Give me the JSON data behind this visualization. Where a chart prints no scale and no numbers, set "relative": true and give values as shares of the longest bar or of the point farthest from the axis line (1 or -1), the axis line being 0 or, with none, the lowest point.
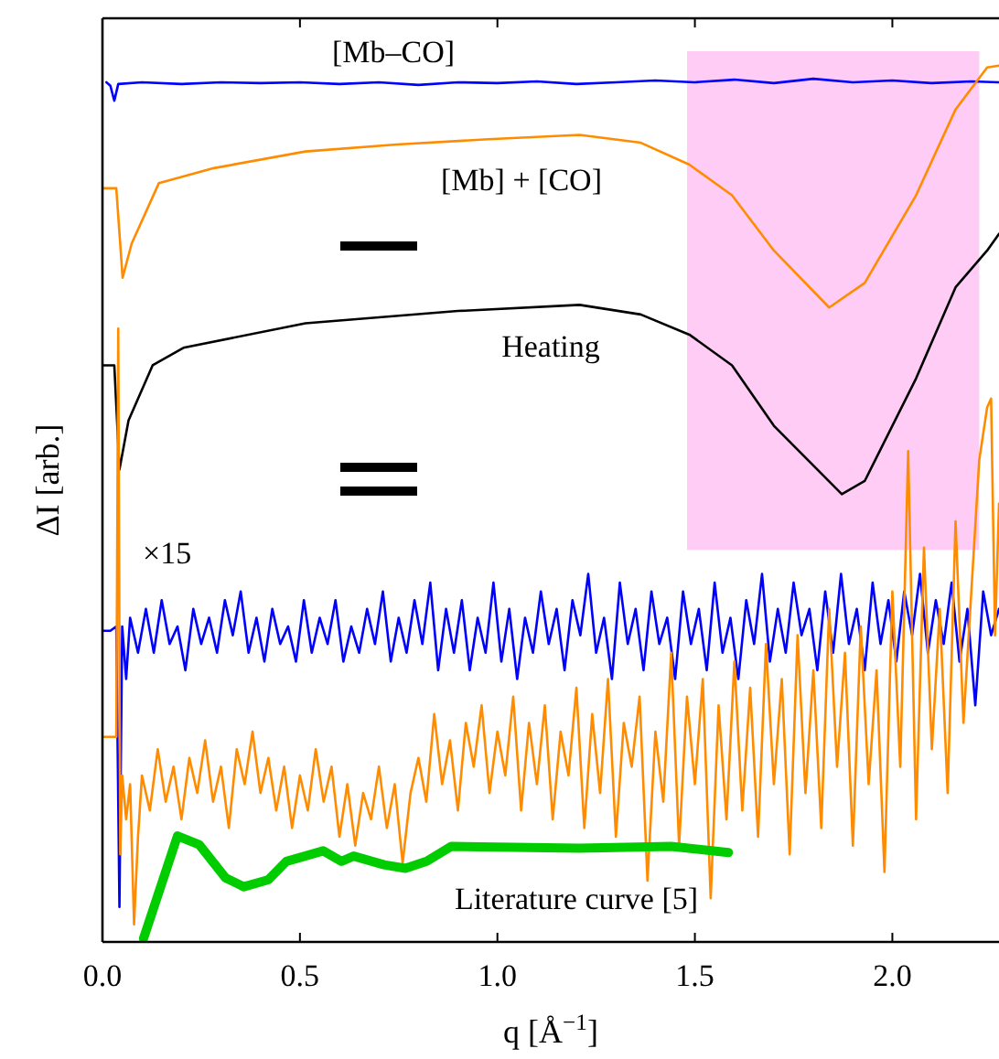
{
  "chart_data": {
    "type": "line",
    "relative": true,
    "xlabel": "q [Å$^{−1}$]",
    "ylabel": "ΔI [arb.]",
    "xlim": [
      0,
      2.27
    ],
    "xticks": [
      {
        "value": 0,
        "label": "0.0"
      },
      {
        "value": 0.5,
        "label": "0.5"
      },
      {
        "value": 1,
        "label": "1.0"
      },
      {
        "value": 1.5,
        "label": "1.5"
      },
      {
        "value": 2,
        "label": "2.0"
      }
    ],
    "bands": [
      {
        "axis": "x",
        "from": 1.48,
        "to": 2.22,
        "color": "#ffccf6"
      }
    ],
    "annotations": [
      "×15"
    ],
    "series": [
      {
        "name": "[Mb–CO]",
        "color": "#0000ff",
        "x": [
          0.01,
          0.02,
          0.03,
          0.04,
          0.1,
          0.2,
          0.3,
          0.4,
          0.5,
          0.6,
          0.7,
          0.8,
          0.9,
          1.0,
          1.1,
          1.2,
          1.3,
          1.4,
          1.5,
          1.6,
          1.7,
          1.8,
          1.9,
          2.0,
          2.1,
          2.2,
          2.27
        ],
        "values": [
          0.981,
          0.977,
          0.96,
          0.979,
          0.981,
          0.979,
          0.981,
          0.98,
          0.981,
          0.979,
          0.981,
          0.978,
          0.981,
          0.98,
          0.982,
          0.979,
          0.981,
          0.983,
          0.981,
          0.984,
          0.98,
          0.985,
          0.981,
          0.983,
          0.98,
          0.982,
          0.981
        ]
      },
      {
        "name": "[Mb] + [CO]",
        "color": "#ff8c00",
        "x": [
          0.0,
          0.035,
          0.051,
          0.074,
          0.143,
          0.282,
          0.514,
          0.745,
          0.977,
          1.208,
          1.363,
          1.486,
          1.594,
          1.7,
          1.84,
          1.93,
          2.06,
          2.16,
          2.24,
          2.27
        ],
        "values": [
          0.86,
          0.86,
          0.758,
          0.797,
          0.866,
          0.883,
          0.902,
          0.91,
          0.916,
          0.921,
          0.912,
          0.887,
          0.852,
          0.789,
          0.724,
          0.752,
          0.852,
          0.95,
          0.998,
          1.0
        ]
      },
      {
        "name": "Heating",
        "color": "#000000",
        "x": [
          0.0,
          0.03,
          0.043,
          0.066,
          0.127,
          0.205,
          0.514,
          0.9,
          1.208,
          1.363,
          1.486,
          1.594,
          1.7,
          1.872,
          1.93,
          2.06,
          2.16,
          2.24,
          2.27
        ],
        "values": [
          0.658,
          0.658,
          0.539,
          0.595,
          0.658,
          0.678,
          0.706,
          0.72,
          0.727,
          0.716,
          0.693,
          0.658,
          0.589,
          0.511,
          0.526,
          0.643,
          0.747,
          0.789,
          0.808
        ]
      },
      {
        "color": "#0000ff",
        "x": [
          0.0,
          0.02,
          0.035,
          0.043,
          0.05,
          0.06,
          0.07,
          0.09,
          0.11,
          0.13,
          0.15,
          0.17,
          0.19,
          0.21,
          0.23,
          0.25,
          0.27,
          0.29,
          0.31,
          0.33,
          0.35,
          0.37,
          0.39,
          0.41,
          0.43,
          0.45,
          0.47,
          0.49,
          0.51,
          0.53,
          0.55,
          0.57,
          0.59,
          0.61,
          0.63,
          0.65,
          0.67,
          0.69,
          0.71,
          0.73,
          0.75,
          0.77,
          0.79,
          0.81,
          0.83,
          0.85,
          0.87,
          0.89,
          0.91,
          0.93,
          0.95,
          0.97,
          0.99,
          1.01,
          1.03,
          1.05,
          1.07,
          1.09,
          1.11,
          1.13,
          1.15,
          1.17,
          1.19,
          1.21,
          1.23,
          1.25,
          1.27,
          1.29,
          1.31,
          1.33,
          1.35,
          1.37,
          1.39,
          1.41,
          1.43,
          1.45,
          1.47,
          1.49,
          1.51,
          1.53,
          1.55,
          1.57,
          1.59,
          1.61,
          1.63,
          1.65,
          1.67,
          1.69,
          1.71,
          1.73,
          1.75,
          1.77,
          1.79,
          1.81,
          1.83,
          1.85,
          1.87,
          1.89,
          1.91,
          1.93,
          1.95,
          1.97,
          1.99,
          2.01,
          2.03,
          2.05,
          2.07,
          2.09,
          2.11,
          2.13,
          2.15,
          2.17,
          2.19,
          2.21,
          2.23,
          2.25,
          2.27
        ],
        "values": [
          0.355,
          0.355,
          0.36,
          0.04,
          0.36,
          0.3,
          0.37,
          0.33,
          0.38,
          0.33,
          0.39,
          0.34,
          0.36,
          0.31,
          0.38,
          0.34,
          0.37,
          0.33,
          0.39,
          0.35,
          0.4,
          0.33,
          0.37,
          0.32,
          0.38,
          0.34,
          0.36,
          0.32,
          0.39,
          0.33,
          0.37,
          0.34,
          0.39,
          0.32,
          0.36,
          0.33,
          0.38,
          0.34,
          0.4,
          0.32,
          0.37,
          0.33,
          0.39,
          0.34,
          0.41,
          0.31,
          0.38,
          0.33,
          0.39,
          0.31,
          0.37,
          0.33,
          0.41,
          0.32,
          0.38,
          0.3,
          0.37,
          0.33,
          0.4,
          0.34,
          0.38,
          0.31,
          0.39,
          0.35,
          0.42,
          0.33,
          0.37,
          0.3,
          0.41,
          0.34,
          0.38,
          0.31,
          0.4,
          0.34,
          0.37,
          0.3,
          0.4,
          0.34,
          0.38,
          0.31,
          0.41,
          0.33,
          0.37,
          0.3,
          0.39,
          0.34,
          0.42,
          0.32,
          0.38,
          0.33,
          0.41,
          0.35,
          0.38,
          0.31,
          0.4,
          0.33,
          0.42,
          0.34,
          0.38,
          0.31,
          0.41,
          0.34,
          0.39,
          0.32,
          0.4,
          0.35,
          0.42,
          0.33,
          0.39,
          0.34,
          0.41,
          0.32,
          0.38,
          0.27,
          0.4,
          0.35,
          0.38
        ]
      },
      {
        "color": "#ff8c00",
        "x": [
          0.0,
          0.035,
          0.04,
          0.045,
          0.05,
          0.06,
          0.07,
          0.08,
          0.09,
          0.1,
          0.12,
          0.14,
          0.16,
          0.18,
          0.2,
          0.22,
          0.24,
          0.26,
          0.28,
          0.3,
          0.32,
          0.34,
          0.36,
          0.38,
          0.4,
          0.42,
          0.44,
          0.46,
          0.48,
          0.5,
          0.52,
          0.54,
          0.56,
          0.58,
          0.6,
          0.62,
          0.64,
          0.66,
          0.68,
          0.7,
          0.72,
          0.74,
          0.76,
          0.78,
          0.8,
          0.82,
          0.84,
          0.86,
          0.88,
          0.9,
          0.92,
          0.94,
          0.96,
          0.98,
          1.0,
          1.02,
          1.04,
          1.06,
          1.08,
          1.1,
          1.12,
          1.14,
          1.16,
          1.18,
          1.2,
          1.22,
          1.24,
          1.26,
          1.28,
          1.3,
          1.32,
          1.34,
          1.36,
          1.38,
          1.4,
          1.42,
          1.44,
          1.46,
          1.48,
          1.5,
          1.52,
          1.54,
          1.56,
          1.58,
          1.6,
          1.62,
          1.64,
          1.66,
          1.68,
          1.7,
          1.72,
          1.74,
          1.76,
          1.78,
          1.8,
          1.82,
          1.84,
          1.86,
          1.88,
          1.9,
          1.92,
          1.94,
          1.96,
          1.98,
          2.0,
          2.02,
          2.04,
          2.06,
          2.08,
          2.1,
          2.12,
          2.14,
          2.16,
          2.18,
          2.2,
          2.22,
          2.24,
          2.25,
          2.26,
          2.27
        ],
        "values": [
          0.234,
          0.234,
          0.7,
          0.1,
          0.19,
          0.14,
          0.18,
          0.02,
          0.12,
          0.19,
          0.15,
          0.22,
          0.16,
          0.2,
          0.14,
          0.21,
          0.17,
          0.23,
          0.16,
          0.2,
          0.13,
          0.22,
          0.18,
          0.24,
          0.17,
          0.21,
          0.15,
          0.2,
          0.13,
          0.19,
          0.15,
          0.22,
          0.16,
          0.2,
          0.12,
          0.18,
          0.11,
          0.17,
          0.14,
          0.2,
          0.13,
          0.18,
          0.09,
          0.17,
          0.21,
          0.16,
          0.26,
          0.18,
          0.23,
          0.15,
          0.25,
          0.2,
          0.27,
          0.17,
          0.24,
          0.19,
          0.28,
          0.15,
          0.25,
          0.18,
          0.27,
          0.14,
          0.24,
          0.19,
          0.29,
          0.13,
          0.26,
          0.17,
          0.3,
          0.12,
          0.25,
          0.2,
          0.28,
          0.07,
          0.24,
          0.16,
          0.33,
          0.11,
          0.28,
          0.18,
          0.3,
          0.05,
          0.27,
          0.14,
          0.32,
          0.15,
          0.29,
          0.12,
          0.34,
          0.18,
          0.3,
          0.1,
          0.35,
          0.17,
          0.31,
          0.13,
          0.38,
          0.2,
          0.33,
          0.11,
          0.36,
          0.18,
          0.31,
          0.08,
          0.4,
          0.2,
          0.56,
          0.14,
          0.45,
          0.22,
          0.38,
          0.17,
          0.48,
          0.25,
          0.4,
          0.55,
          0.61,
          0.62,
          0.35,
          0.5
        ]
      },
      {
        "name": "Literature curve [5]",
        "color": "#00cc00",
        "x": [
          0.104,
          0.19,
          0.245,
          0.312,
          0.358,
          0.42,
          0.466,
          0.559,
          0.605,
          0.636,
          0.713,
          0.767,
          0.821,
          0.883,
          1.207,
          1.44,
          1.585
        ],
        "values": [
          0.004,
          0.121,
          0.111,
          0.073,
          0.063,
          0.071,
          0.092,
          0.104,
          0.092,
          0.098,
          0.088,
          0.084,
          0.092,
          0.109,
          0.107,
          0.109,
          0.102
        ]
      }
    ]
  }
}
